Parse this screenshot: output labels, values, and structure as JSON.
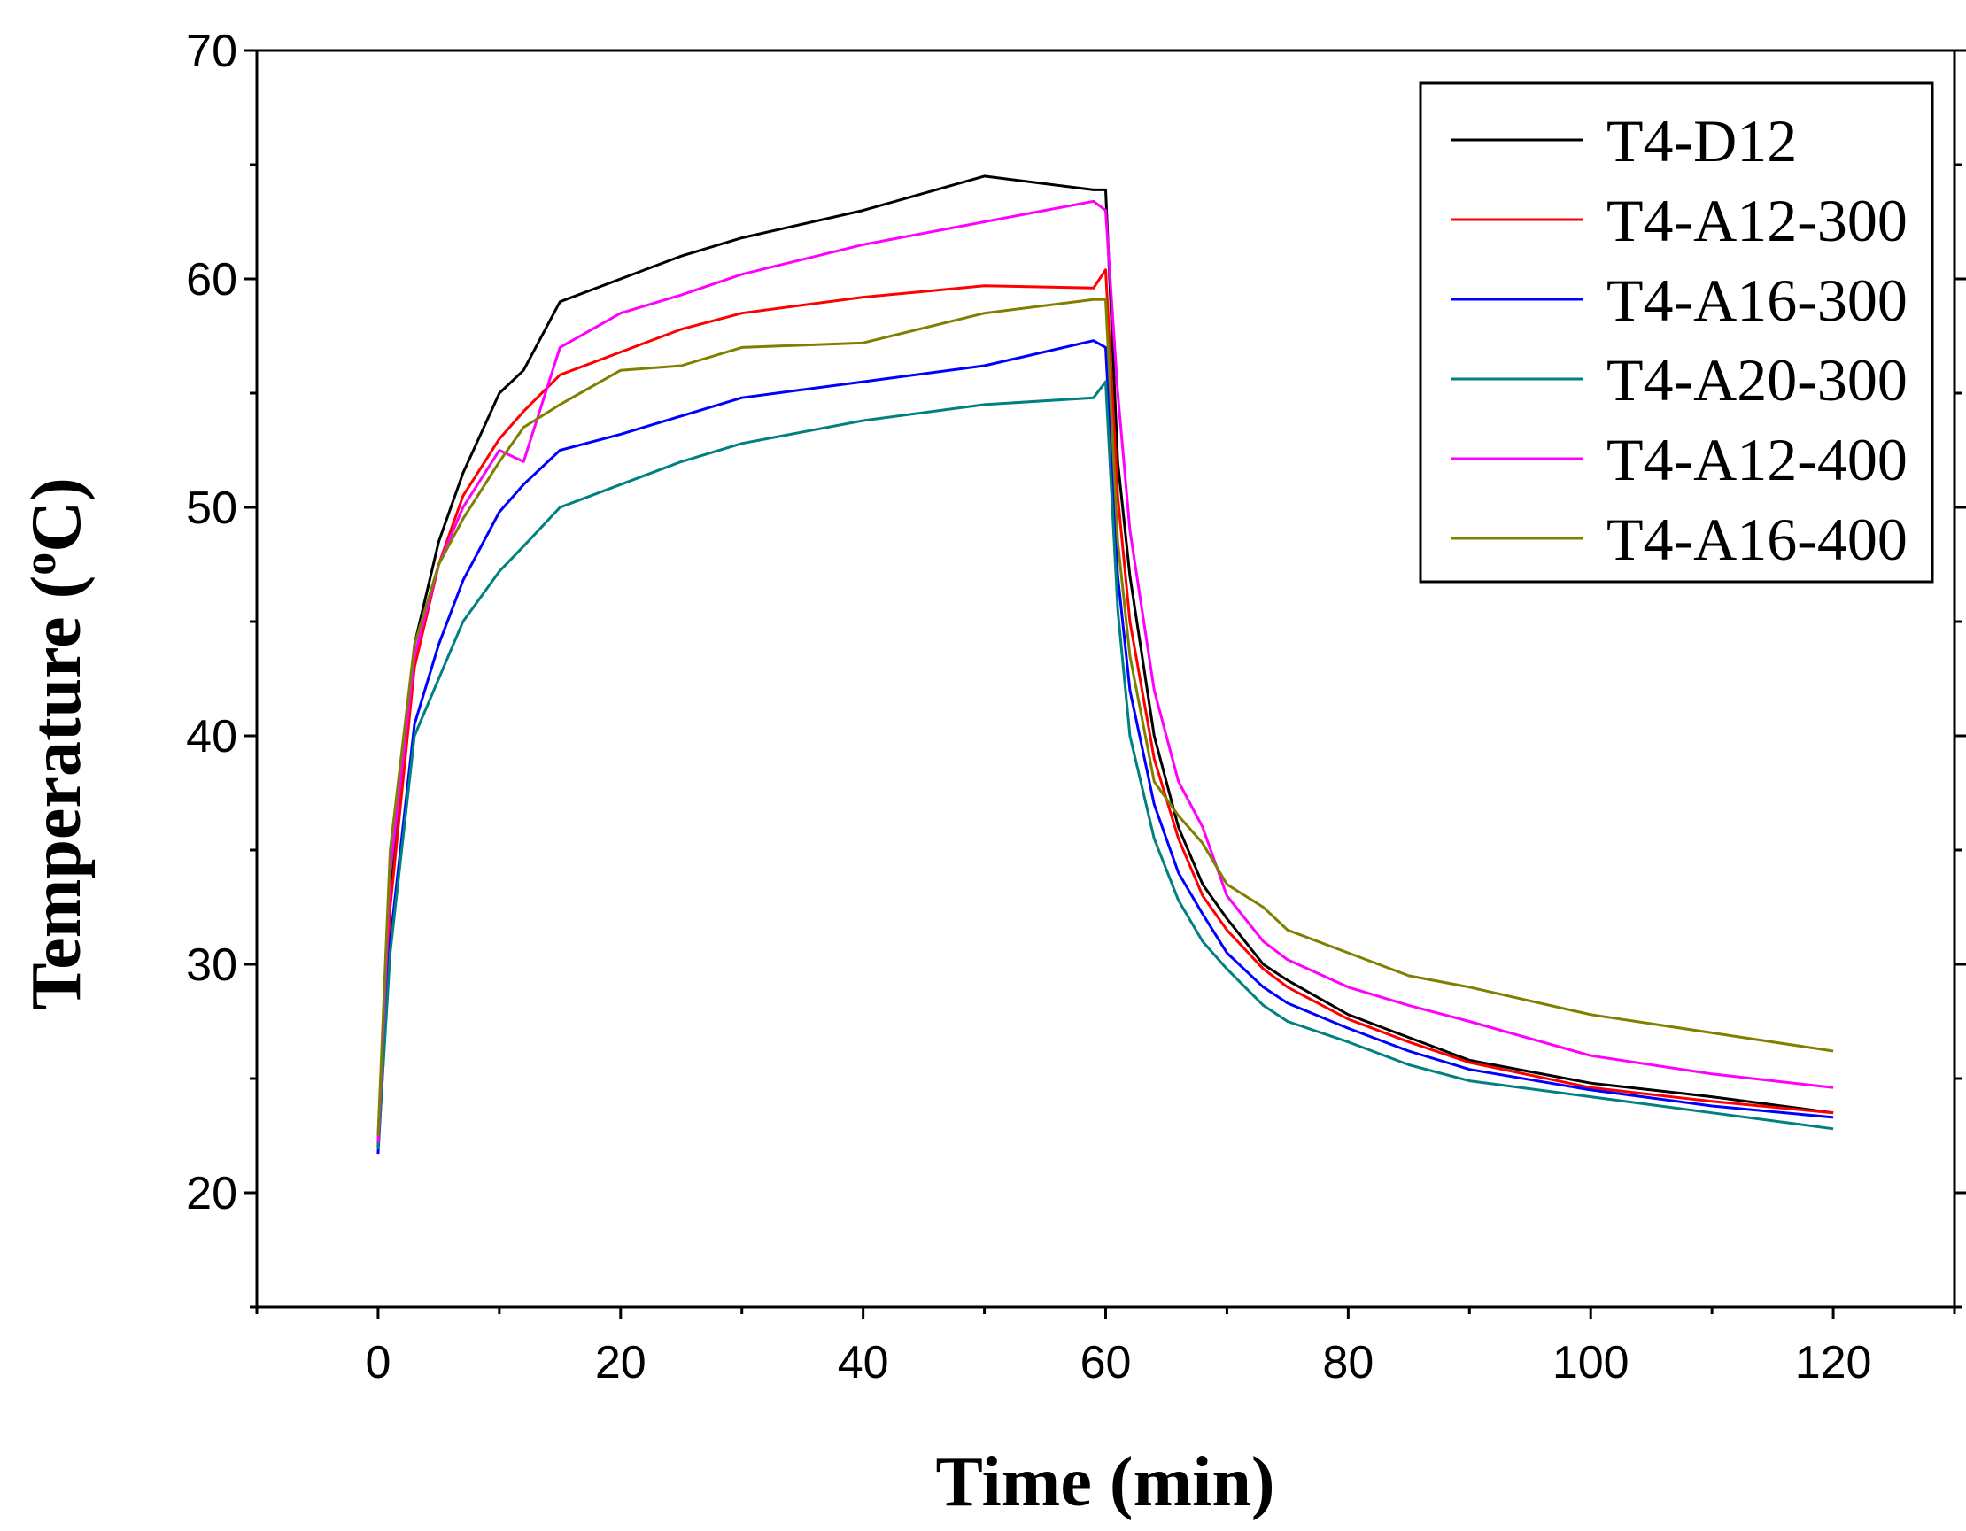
{
  "chart_data": {
    "type": "line",
    "title": "",
    "xlabel": "Time (min)",
    "ylabel_main": "Temperature (",
    "ylabel_sup": "o",
    "ylabel_end": "C)",
    "xlim": [
      -10,
      130
    ],
    "ylim": [
      15,
      70
    ],
    "xticks": [
      0,
      20,
      40,
      60,
      80,
      100,
      120
    ],
    "yticks": [
      20,
      30,
      40,
      50,
      60,
      70
    ],
    "legend_position": "top-right",
    "x": [
      0,
      1,
      3,
      5,
      7,
      10,
      12,
      15,
      20,
      25,
      30,
      40,
      50,
      59,
      60,
      61,
      62,
      64,
      66,
      68,
      70,
      73,
      75,
      80,
      85,
      90,
      100,
      110,
      120
    ],
    "series": [
      {
        "name": "T4-D12",
        "color": "#000000",
        "values": [
          22.0,
          33.0,
          44.0,
          48.5,
          51.5,
          55.0,
          56.0,
          59.0,
          60.0,
          61.0,
          61.8,
          63.0,
          64.5,
          63.9,
          63.9,
          52.0,
          47.0,
          40.0,
          36.0,
          33.5,
          32.0,
          30.0,
          29.3,
          27.8,
          26.8,
          25.8,
          24.8,
          24.2,
          23.5
        ]
      },
      {
        "name": "T4-A12-300",
        "color": "#ff0000",
        "values": [
          22.0,
          32.5,
          43.0,
          47.5,
          50.5,
          53.0,
          54.2,
          55.8,
          56.8,
          57.8,
          58.5,
          59.2,
          59.7,
          59.6,
          60.4,
          50.5,
          45.0,
          39.0,
          35.5,
          33.0,
          31.5,
          29.8,
          29.0,
          27.6,
          26.6,
          25.7,
          24.6,
          24.0,
          23.5
        ]
      },
      {
        "name": "T4-A16-300",
        "color": "#0000ff",
        "values": [
          21.7,
          31.0,
          40.5,
          44.0,
          46.8,
          49.8,
          51.0,
          52.5,
          53.2,
          54.0,
          54.8,
          55.5,
          56.2,
          57.3,
          57.0,
          47.0,
          42.0,
          37.0,
          34.0,
          32.2,
          30.5,
          29.0,
          28.3,
          27.2,
          26.2,
          25.4,
          24.5,
          23.8,
          23.3
        ]
      },
      {
        "name": "T4-A20-300",
        "color": "#008080",
        "values": [
          21.9,
          30.5,
          40.0,
          42.5,
          45.0,
          47.2,
          48.3,
          50.0,
          51.0,
          52.0,
          52.8,
          53.8,
          54.5,
          54.8,
          55.5,
          45.5,
          40.0,
          35.5,
          32.8,
          31.0,
          29.8,
          28.2,
          27.5,
          26.6,
          25.6,
          24.9,
          24.2,
          23.5,
          22.8
        ]
      },
      {
        "name": "T4-A12-400",
        "color": "#ff00ff",
        "values": [
          22.2,
          34.0,
          43.5,
          47.5,
          50.0,
          52.5,
          52.0,
          57.0,
          58.5,
          59.3,
          60.2,
          61.5,
          62.5,
          63.4,
          63.0,
          55.0,
          49.0,
          42.0,
          38.0,
          36.0,
          33.0,
          31.0,
          30.2,
          29.0,
          28.2,
          27.5,
          26.0,
          25.2,
          24.6
        ]
      },
      {
        "name": "T4-A16-400",
        "color": "#808000",
        "values": [
          22.5,
          35.0,
          44.0,
          47.5,
          49.5,
          52.0,
          53.5,
          54.5,
          56.0,
          56.2,
          57.0,
          57.2,
          58.5,
          59.1,
          59.1,
          48.5,
          43.5,
          38.0,
          36.5,
          35.3,
          33.5,
          32.5,
          31.5,
          30.5,
          29.5,
          29.0,
          27.8,
          27.0,
          26.2
        ]
      }
    ]
  }
}
